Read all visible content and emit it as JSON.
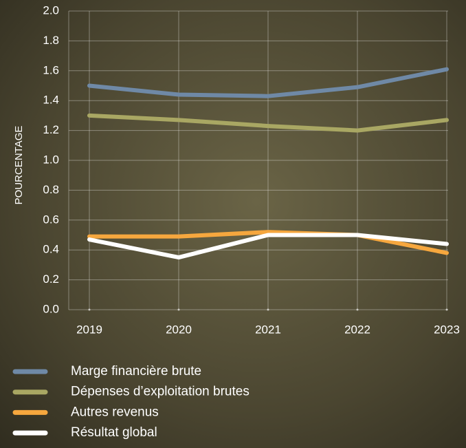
{
  "chart_data": {
    "type": "line",
    "y_label": "POURCENTAGE",
    "categories": [
      "2019",
      "2020",
      "2021",
      "2022",
      "2023"
    ],
    "series": [
      {
        "name": "Marge financière brute",
        "color": "#6f89a6",
        "values": [
          1.5,
          1.44,
          1.43,
          1.49,
          1.61
        ]
      },
      {
        "name": "Dépenses d’exploitation brutes",
        "color": "#a9a763",
        "values": [
          1.3,
          1.27,
          1.23,
          1.2,
          1.27
        ]
      },
      {
        "name": "Autres revenus",
        "color": "#f6a73e",
        "values": [
          0.49,
          0.49,
          0.52,
          0.5,
          0.38
        ]
      },
      {
        "name": "Résultat global",
        "color": "#ffffff",
        "values": [
          0.47,
          0.35,
          0.5,
          0.5,
          0.44
        ]
      }
    ],
    "ylim": [
      0,
      2
    ],
    "yticks": [
      {
        "value": 0,
        "label": "0.0"
      },
      0.2,
      0.4,
      0.6,
      0.8,
      {
        "value": 1,
        "label": "1.0"
      },
      1.2,
      1.4,
      1.6,
      1.8,
      {
        "value": 2,
        "label": "2.0"
      }
    ],
    "grid": true
  }
}
